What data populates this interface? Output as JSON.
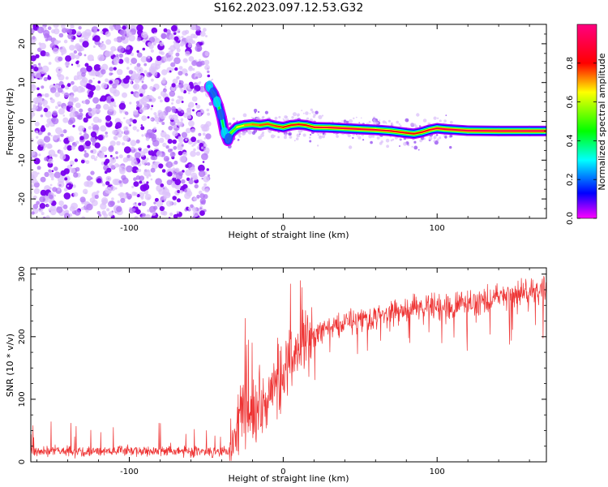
{
  "figure": {
    "title": "S162.2023.097.12.53.G32"
  },
  "colors": {
    "snr_line": "#ee3333",
    "ridge_scatter": "#8a2be2"
  },
  "chart_data": [
    {
      "id": "spectrogram",
      "type": "heatmap",
      "title": "",
      "xlabel": "Height of straight line (km)",
      "ylabel": "Frequency (Hz)",
      "xlim": [
        -164,
        171
      ],
      "ylim": [
        -25,
        25
      ],
      "xticks": [
        -100,
        0,
        100
      ],
      "yticks": [
        -20,
        -10,
        0,
        10,
        20
      ],
      "grid": false,
      "colorbar": {
        "label": "Normalized spectral amplitude",
        "range": [
          0,
          1
        ],
        "ticks": [
          "0.0",
          "0.2",
          "0.4",
          "0.6",
          "0.8"
        ],
        "colormap": [
          "#ff00ff",
          "#0000ff",
          "#00ffff",
          "#00ff00",
          "#ffff00",
          "#ff0000",
          "#ff0080"
        ]
      },
      "noise_region": {
        "x_range": [
          -164,
          -48
        ],
        "y_range": [
          -25,
          25
        ]
      },
      "ridge": {
        "x": [
          -48,
          -45,
          -42,
          -40,
          -38,
          -36,
          -34,
          -30,
          -25,
          -20,
          -15,
          -10,
          -5,
          0,
          5,
          10,
          15,
          20,
          30,
          40,
          50,
          60,
          70,
          80,
          85,
          90,
          95,
          100,
          105,
          120,
          140,
          160,
          171
        ],
        "y": [
          9,
          7,
          4,
          1,
          -3,
          -5,
          -3,
          -1.5,
          -1,
          -0.8,
          -1,
          -0.7,
          -1.2,
          -1.5,
          -1,
          -0.8,
          -1,
          -1.5,
          -1.6,
          -1.8,
          -2,
          -2.2,
          -2.5,
          -3,
          -3.2,
          -2.8,
          -2.2,
          -1.8,
          -2,
          -2.4,
          -2.5,
          -2.5,
          -2.5
        ],
        "amplitude": [
          0.4,
          0.45,
          0.5,
          0.45,
          0.4,
          0.45,
          0.5,
          0.6,
          0.7,
          0.72,
          0.75,
          0.78,
          0.75,
          0.8,
          0.82,
          0.82,
          0.8,
          0.85,
          0.88,
          0.9,
          0.9,
          0.88,
          0.85,
          0.82,
          0.8,
          0.82,
          0.85,
          0.9,
          0.9,
          0.92,
          0.92,
          0.92,
          0.92
        ]
      }
    },
    {
      "id": "snr",
      "type": "line",
      "title": "",
      "xlabel": "Height of straight line (km)",
      "ylabel": "SNR (10 * v/v)",
      "xlim": [
        -164,
        171
      ],
      "ylim": [
        0,
        310
      ],
      "xticks": [
        -100,
        0,
        100
      ],
      "yticks": [
        0,
        100,
        200,
        300
      ],
      "grid": false,
      "series": [
        {
          "x": [
            -164,
            -150,
            -130,
            -110,
            -90,
            -70,
            -50,
            -35,
            -30,
            -25,
            -20,
            -15,
            -10,
            -5,
            0,
            5,
            10,
            15,
            20,
            30,
            40,
            50,
            60,
            70,
            80,
            90,
            100,
            110,
            120,
            130,
            140,
            150,
            160,
            171
          ],
          "y": [
            15,
            18,
            16,
            17,
            18,
            17,
            16,
            18,
            60,
            90,
            70,
            95,
            110,
            120,
            130,
            150,
            175,
            195,
            200,
            215,
            225,
            230,
            232,
            238,
            242,
            245,
            248,
            252,
            255,
            260,
            265,
            268,
            272,
            275
          ]
        }
      ]
    }
  ]
}
